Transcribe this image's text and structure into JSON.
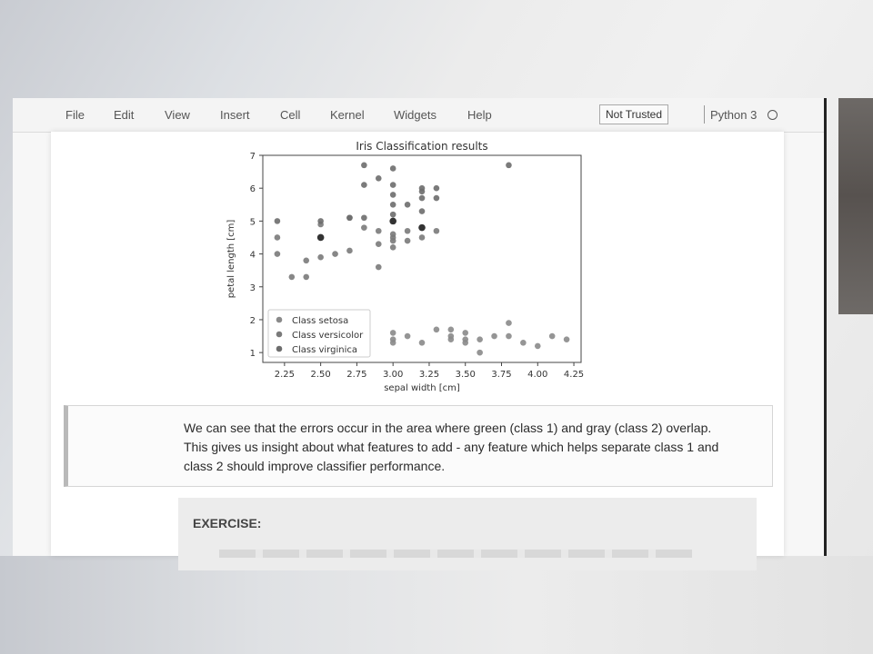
{
  "menu": {
    "items": [
      "File",
      "Edit",
      "View",
      "Insert",
      "Cell",
      "Kernel",
      "Widgets",
      "Help"
    ],
    "trust_label": "Not Trusted",
    "kernel_name": "Python 3"
  },
  "colors": {
    "setosa": "#8a8a8a",
    "versicolor": "#7a7a7a",
    "virginica": "#6d6d6d",
    "misclassified": "#333333"
  },
  "chart_data": {
    "type": "scatter",
    "title": "Iris Classification results",
    "xlabel": "sepal width [cm]",
    "ylabel": "petal length [cm]",
    "xlim": [
      2.1,
      4.3
    ],
    "ylim": [
      0.7,
      7.0
    ],
    "xticks": [
      "2.25",
      "2.50",
      "2.75",
      "3.00",
      "3.25",
      "3.50",
      "3.75",
      "4.00",
      "4.25"
    ],
    "xtick_values": [
      2.25,
      2.5,
      2.75,
      3.0,
      3.25,
      3.5,
      3.75,
      4.0,
      4.25
    ],
    "yticks": [
      "1",
      "2",
      "3",
      "4",
      "5",
      "6",
      "7"
    ],
    "ytick_values": [
      1,
      2,
      3,
      4,
      5,
      6,
      7
    ],
    "legend_position": "lower-left",
    "series": [
      {
        "name": "Class setosa",
        "points": [
          [
            3.0,
            1.6
          ],
          [
            3.0,
            1.4
          ],
          [
            3.0,
            1.3
          ],
          [
            3.1,
            1.5
          ],
          [
            3.2,
            1.3
          ],
          [
            3.3,
            1.7
          ],
          [
            3.4,
            1.7
          ],
          [
            3.4,
            1.5
          ],
          [
            3.4,
            1.4
          ],
          [
            3.5,
            1.6
          ],
          [
            3.5,
            1.4
          ],
          [
            3.5,
            1.3
          ],
          [
            3.6,
            1.4
          ],
          [
            3.6,
            1.0
          ],
          [
            3.7,
            1.5
          ],
          [
            3.8,
            1.9
          ],
          [
            3.8,
            1.5
          ],
          [
            3.9,
            1.3
          ],
          [
            4.0,
            1.2
          ],
          [
            4.1,
            1.5
          ],
          [
            4.2,
            1.4
          ]
        ]
      },
      {
        "name": "Class versicolor",
        "points": [
          [
            2.2,
            4.5
          ],
          [
            2.2,
            4.0
          ],
          [
            2.3,
            3.3
          ],
          [
            2.4,
            3.3
          ],
          [
            2.4,
            3.8
          ],
          [
            2.5,
            3.9
          ],
          [
            2.5,
            4.9
          ],
          [
            2.6,
            4.0
          ],
          [
            2.7,
            4.1
          ],
          [
            2.7,
            5.1
          ],
          [
            2.8,
            4.8
          ],
          [
            2.9,
            3.6
          ],
          [
            2.9,
            4.3
          ],
          [
            2.9,
            4.7
          ],
          [
            3.0,
            4.2
          ],
          [
            3.0,
            4.5
          ],
          [
            3.0,
            4.6
          ],
          [
            3.0,
            4.4
          ],
          [
            3.1,
            4.4
          ],
          [
            3.1,
            4.7
          ],
          [
            3.2,
            4.5
          ],
          [
            3.3,
            4.7
          ]
        ]
      },
      {
        "name": "Class virginica",
        "points": [
          [
            2.2,
            5.0
          ],
          [
            2.5,
            5.0
          ],
          [
            2.7,
            5.1
          ],
          [
            2.8,
            5.1
          ],
          [
            2.8,
            6.1
          ],
          [
            2.8,
            6.7
          ],
          [
            2.9,
            6.3
          ],
          [
            3.0,
            5.2
          ],
          [
            3.0,
            5.5
          ],
          [
            3.0,
            5.8
          ],
          [
            3.0,
            6.1
          ],
          [
            3.0,
            6.6
          ],
          [
            3.1,
            5.5
          ],
          [
            3.2,
            5.7
          ],
          [
            3.2,
            5.9
          ],
          [
            3.2,
            6.0
          ],
          [
            3.2,
            5.3
          ],
          [
            3.3,
            5.7
          ],
          [
            3.3,
            6.0
          ],
          [
            3.8,
            6.7
          ]
        ]
      }
    ],
    "highlighted_points": [
      [
        2.5,
        4.5
      ],
      [
        3.0,
        5.0
      ],
      [
        3.2,
        4.8
      ]
    ]
  },
  "markdown": {
    "lines": [
      "We can see that the errors occur in the area where green (class 1) and gray (class 2) overlap.",
      "This gives us insight about what features to add - any feature which helps separate class 1 and",
      "class 2 should improve classifier performance."
    ]
  },
  "exercise": {
    "title": "EXERCISE:"
  }
}
